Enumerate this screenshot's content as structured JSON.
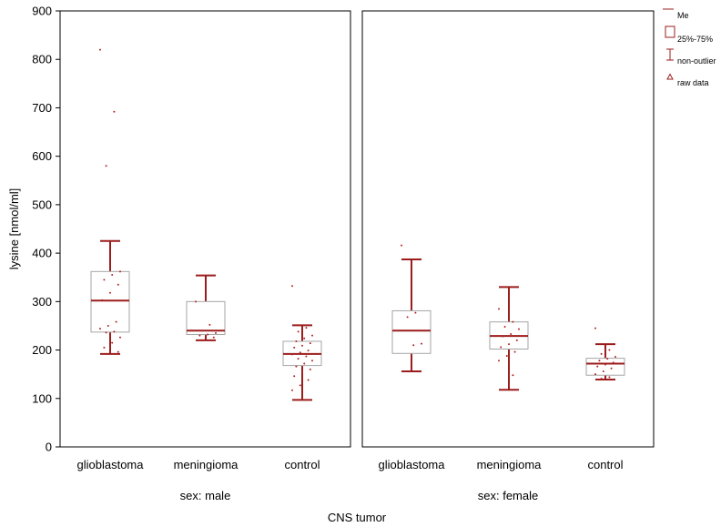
{
  "chart_data": {
    "type": "box",
    "ylabel": "lysine [nmol/ml]",
    "xlabel": "CNS tumor",
    "ylim": [
      0,
      900
    ],
    "yticks": [
      0,
      100,
      200,
      300,
      400,
      500,
      600,
      700,
      800,
      900
    ],
    "categories": [
      "glioblastoma",
      "meningioma",
      "control"
    ],
    "grid": false,
    "legend_position": "right",
    "colors": {
      "box_stroke": "#a6a6a6",
      "whisker": "#9b1c1c",
      "point": "#b22222"
    },
    "legend": {
      "median": "Me",
      "box": "25%-75%",
      "whisker": "non-outlier",
      "points": "raw data"
    },
    "panels": [
      {
        "label": "sex: male",
        "groups": [
          {
            "category": "glioblastoma",
            "median": 302,
            "q1": 237,
            "q3": 362,
            "whisker_low": 192,
            "whisker_high": 425,
            "points": [
              820,
              692,
              580,
              362,
              355,
              345,
              335,
              318,
              303,
              258,
              250,
              244,
              238,
              236,
              226,
              215,
              205,
              196
            ]
          },
          {
            "category": "meningioma",
            "median": 240,
            "q1": 232,
            "q3": 300,
            "whisker_low": 220,
            "whisker_high": 354,
            "points": [
              300,
              252,
              240,
              235,
              232,
              230,
              226
            ]
          },
          {
            "category": "control",
            "median": 192,
            "q1": 168,
            "q3": 218,
            "whisker_low": 97,
            "whisker_high": 251,
            "points": [
              332,
              246,
              238,
              230,
              224,
              218,
              214,
              209,
              205,
              199,
              195,
              191,
              187,
              182,
              178,
              172,
              166,
              160,
              154,
              146,
              138,
              127,
              117
            ]
          }
        ]
      },
      {
        "label": "sex: female",
        "groups": [
          {
            "category": "glioblastoma",
            "median": 240,
            "q1": 193,
            "q3": 281,
            "whisker_low": 156,
            "whisker_high": 387,
            "points": [
              416,
              277,
              268,
              213,
              210
            ]
          },
          {
            "category": "meningioma",
            "median": 229,
            "q1": 202,
            "q3": 258,
            "whisker_low": 118,
            "whisker_high": 330,
            "points": [
              285,
              258,
              248,
              243,
              233,
              228,
              220,
              212,
              206,
              196,
              188,
              178,
              148
            ]
          },
          {
            "category": "control",
            "median": 172,
            "q1": 148,
            "q3": 183,
            "whisker_low": 139,
            "whisker_high": 212,
            "points": [
              245,
              200,
              192,
              186,
              182,
              178,
              174,
              170,
              166,
              162,
              156,
              150,
              144,
              141
            ]
          }
        ]
      }
    ]
  }
}
